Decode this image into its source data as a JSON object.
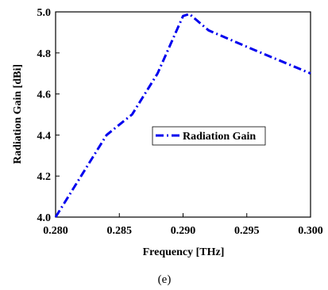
{
  "chart_data": {
    "type": "line",
    "xlabel": "Frequency [THz]",
    "ylabel": "Radiation Gain [dBi]",
    "xlim": [
      0.28,
      0.3
    ],
    "ylim": [
      4.0,
      5.0
    ],
    "x_ticks": [
      "0.280",
      "0.285",
      "0.290",
      "0.295",
      "0.300"
    ],
    "y_ticks": [
      "4.0",
      "4.2",
      "4.4",
      "4.6",
      "4.8",
      "5.0"
    ],
    "legend_position": "center-right",
    "grid": false,
    "line_color": "#0000ee",
    "line_style": "dash-dot",
    "series": [
      {
        "name": "Radiation Gain",
        "x": [
          0.28,
          0.282,
          0.284,
          0.285,
          0.286,
          0.288,
          0.29,
          0.2905,
          0.292,
          0.295,
          0.3
        ],
        "y": [
          4.0,
          4.2,
          4.4,
          4.45,
          4.5,
          4.7,
          4.98,
          4.99,
          4.91,
          4.83,
          4.7
        ]
      }
    ]
  },
  "caption": "(e)"
}
